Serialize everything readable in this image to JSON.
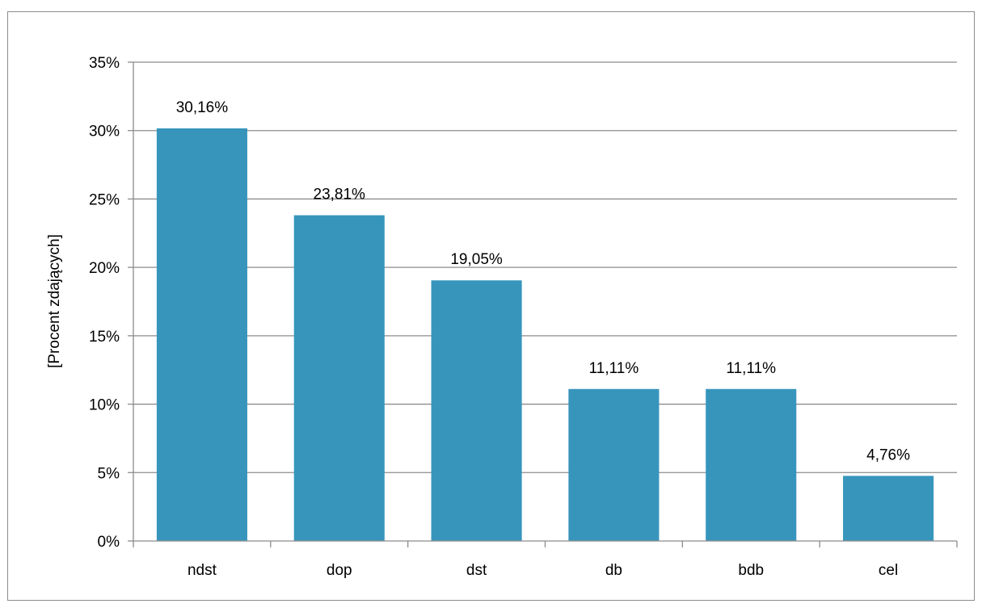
{
  "chart_data": {
    "type": "bar",
    "title": "",
    "xlabel": "",
    "ylabel": "[Procent zdających]",
    "categories": [
      "ndst",
      "dop",
      "dst",
      "db",
      "bdb",
      "cel"
    ],
    "values": [
      30.16,
      23.81,
      19.05,
      11.11,
      11.11,
      4.76
    ],
    "data_labels": [
      "30,16%",
      "23,81%",
      "19,05%",
      "11,11%",
      "11,11%",
      "4,76%"
    ],
    "ylim": [
      0,
      35
    ],
    "yticks": [
      0,
      5,
      10,
      15,
      20,
      25,
      30,
      35
    ],
    "ytick_labels": [
      "0%",
      "5%",
      "10%",
      "15%",
      "20%",
      "25%",
      "30%",
      "35%"
    ],
    "grid": true,
    "legend": "none",
    "bar_color": "#3795bc",
    "gridline_color": "#8c8c8c"
  }
}
